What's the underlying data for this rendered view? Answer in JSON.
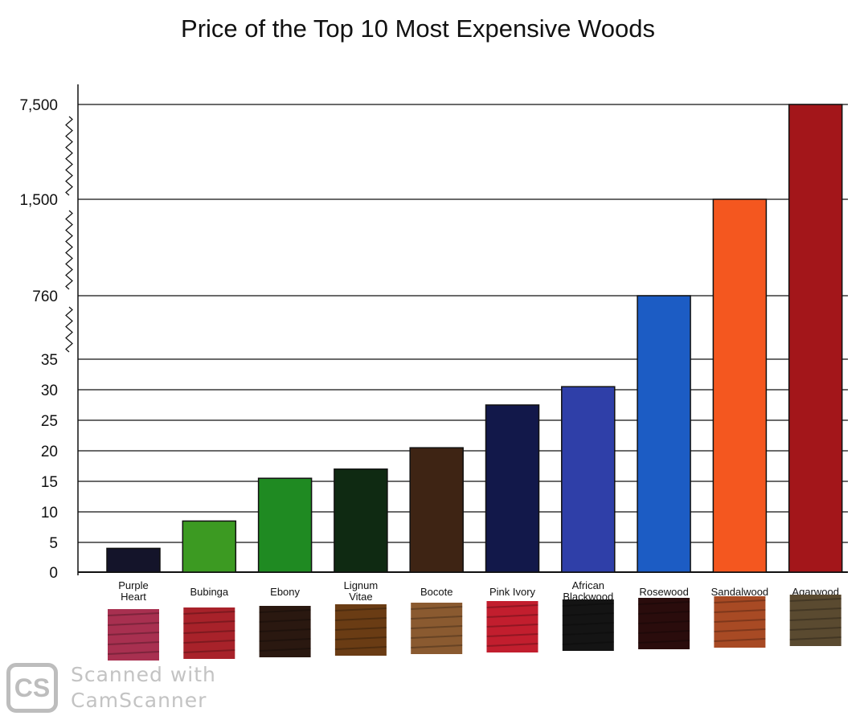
{
  "chart_data": {
    "type": "bar",
    "title": "Price of the Top 10 Most Expensive Woods",
    "xlabel": "",
    "ylabel": "",
    "categories": [
      "Purple Heart",
      "Bubinga",
      "Ebony",
      "Lignum Vitae",
      "Bocote",
      "Pink Ivory",
      "African Blackwood",
      "Rosewood",
      "Sandalwood",
      "Agarwood"
    ],
    "values": [
      4,
      8.5,
      15.5,
      17,
      20.5,
      27.5,
      30.5,
      760,
      1500,
      7500
    ],
    "colors": [
      "#14142a",
      "#3c9a22",
      "#1f8a22",
      "#0f2a12",
      "#3e2414",
      "#12184a",
      "#2f3fa8",
      "#1c5cc4",
      "#f4571f",
      "#a3161a"
    ],
    "swatch_colors": [
      "#a83050",
      "#a8222a",
      "#2a1810",
      "#6a3c14",
      "#8a5a30",
      "#c21e2e",
      "#141414",
      "#2a0c0c",
      "#a84a24",
      "#5a4a30"
    ],
    "y_ticks": [
      "0",
      "5",
      "10",
      "15",
      "20",
      "25",
      "30",
      "35",
      "760",
      "1,500",
      "7,500"
    ],
    "y_tick_values": [
      0,
      5,
      10,
      15,
      20,
      25,
      30,
      35,
      760,
      1500,
      7500
    ],
    "y_axis_broken": true,
    "grid": true,
    "legend": "none"
  },
  "watermark": {
    "logo": "CS",
    "line1": "Scanned with",
    "line2": "CamScanner"
  }
}
